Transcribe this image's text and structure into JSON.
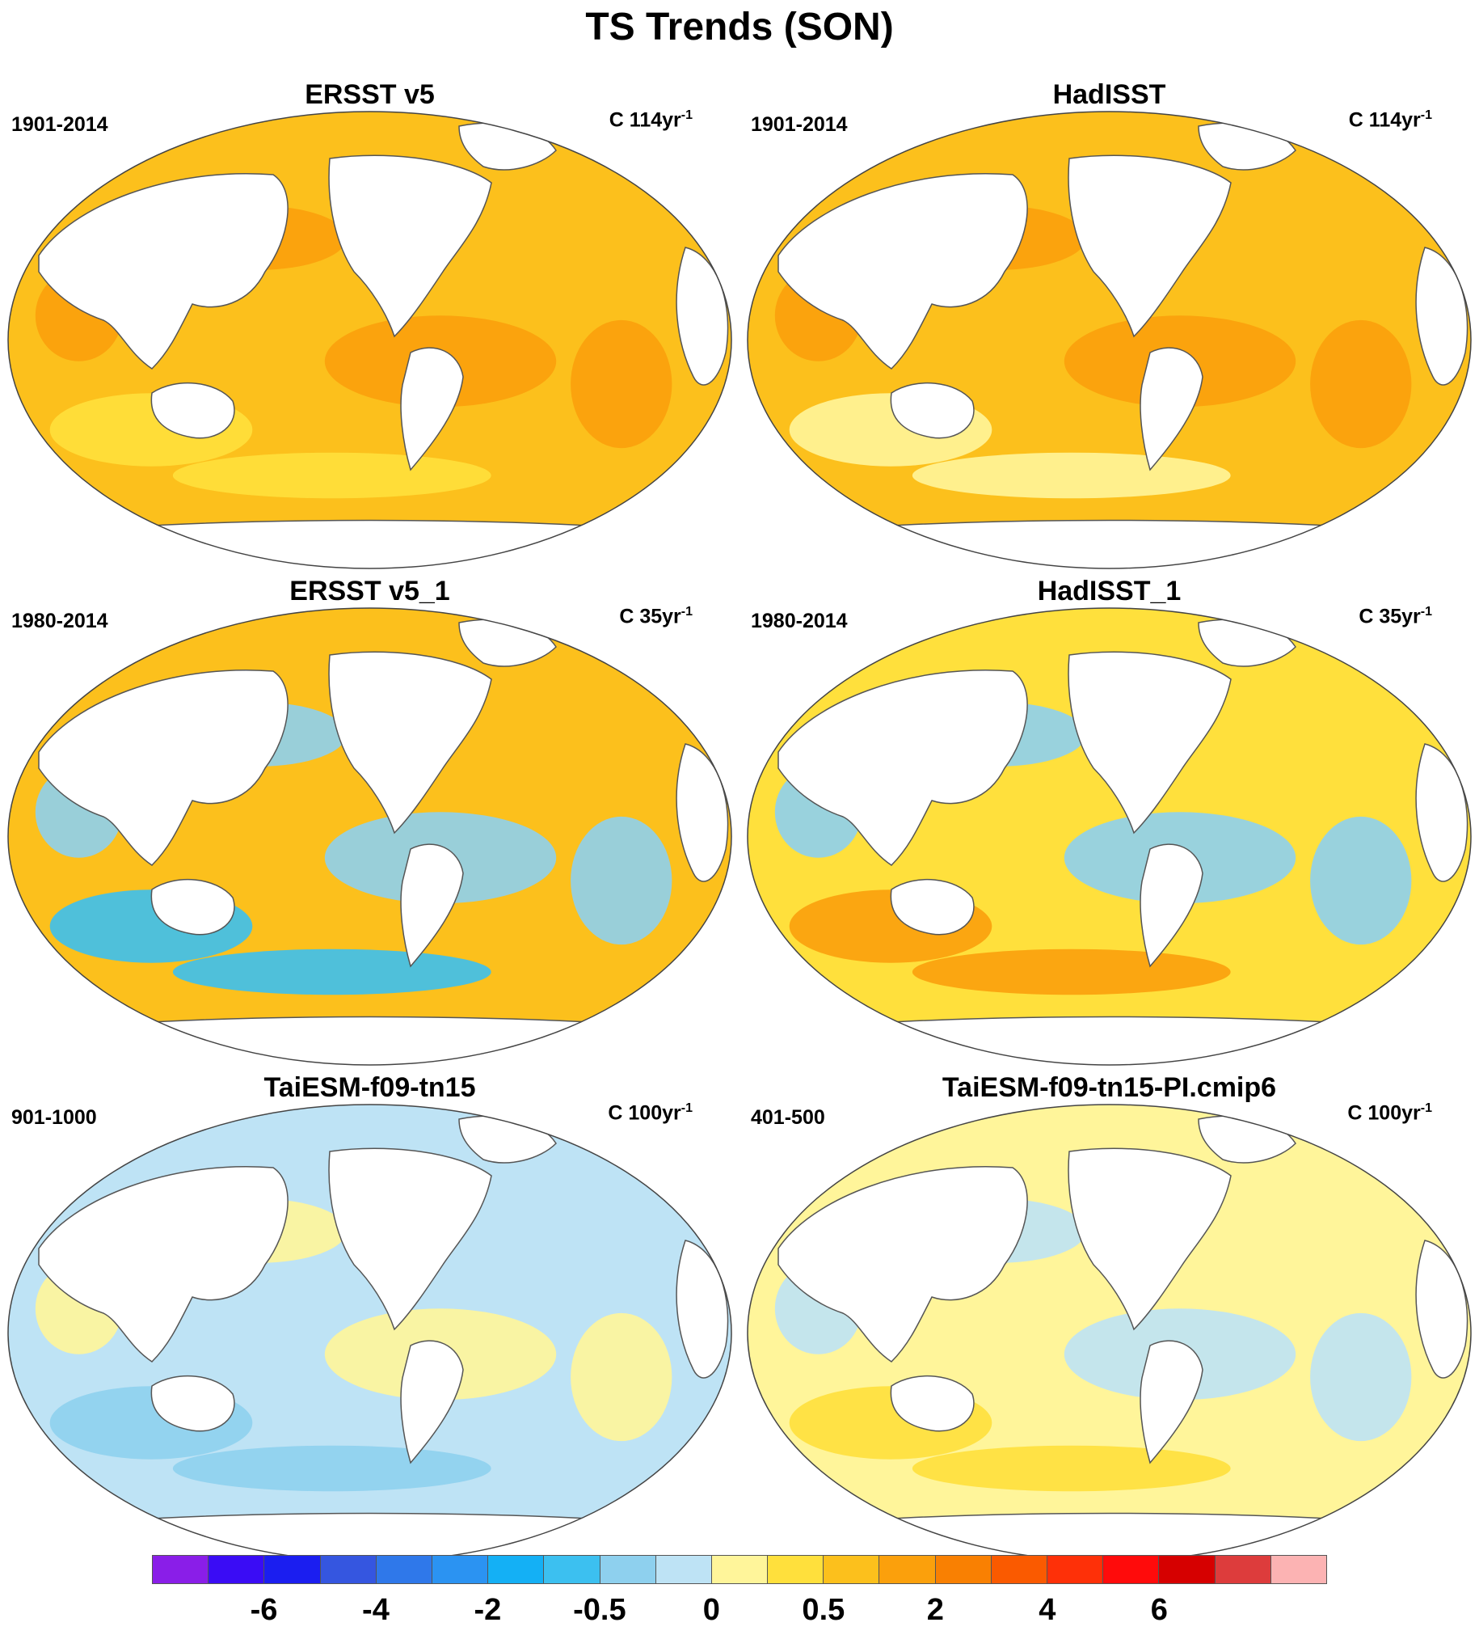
{
  "title": "TS Trends (SON)",
  "panels": [
    {
      "title": "ERSST v5",
      "period": "1901-2014",
      "units": "C 114yr",
      "units_exp": "-1",
      "pattern": "warm"
    },
    {
      "title": "HadISST",
      "period": "1901-2014",
      "units": "C 114yr",
      "units_exp": "-1",
      "pattern": "warm2"
    },
    {
      "title": "ERSST v5_1",
      "period": "1980-2014",
      "units": "C 35yr",
      "units_exp": "-1",
      "pattern": "mixed"
    },
    {
      "title": "HadISST_1",
      "period": "1980-2014",
      "units": "C 35yr",
      "units_exp": "-1",
      "pattern": "mixed2"
    },
    {
      "title": "TaiESM-f09-tn15",
      "period": "901-1000",
      "units": "C 100yr",
      "units_exp": "-1",
      "pattern": "cool"
    },
    {
      "title": "TaiESM-f09-tn15-PI.cmip6",
      "period": "401-500",
      "units": "C 100yr",
      "units_exp": "-1",
      "pattern": "neutral"
    }
  ],
  "colorbar": {
    "colors": [
      "#8a1ee8",
      "#3a0cf5",
      "#1b1ef0",
      "#3556e0",
      "#2f78ea",
      "#2b93f2",
      "#14b0f5",
      "#3cc0f0",
      "#8ed0ee",
      "#bee3f5",
      "#fff59a",
      "#ffe03c",
      "#fcc01c",
      "#fba00c",
      "#f98002",
      "#fa5a00",
      "#fe3008",
      "#ff0b0b",
      "#d60000",
      "#dd3c3c",
      "#fcb3b3"
    ],
    "labels": [
      "-6",
      "-4",
      "-2",
      "-0.5",
      "0",
      "0.5",
      "2",
      "4",
      "6"
    ]
  }
}
